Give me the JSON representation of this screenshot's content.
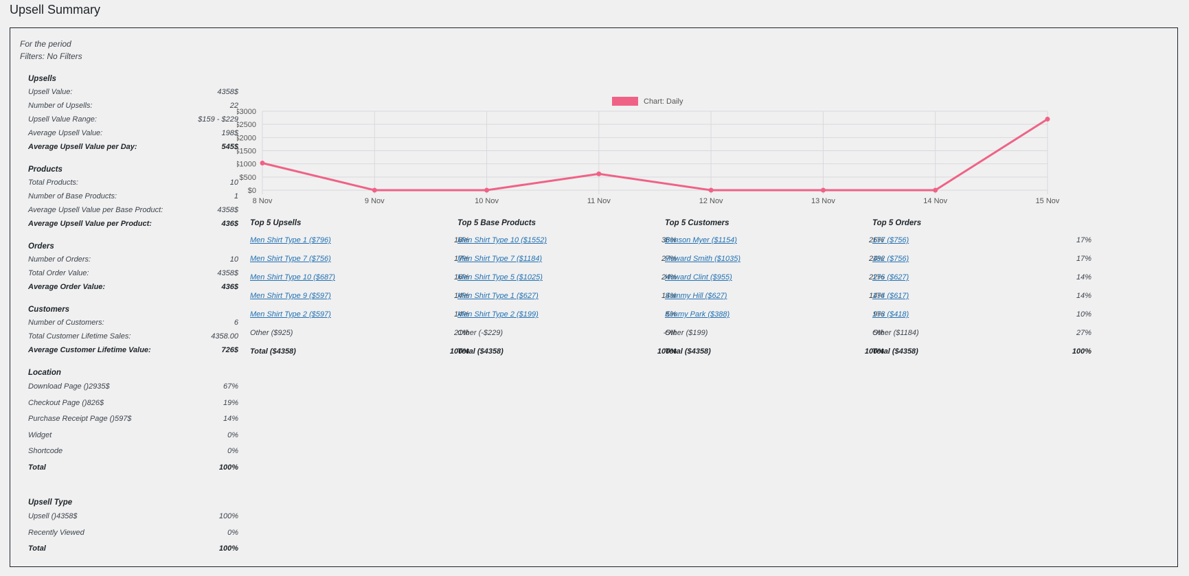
{
  "page_title": "Upsell Summary",
  "period": {
    "label": "For the period",
    "filters": "Filters: No Filters"
  },
  "colors": {
    "line": "#f06285",
    "link": "#2271b1",
    "grid": "#d9d9dc"
  },
  "sections": [
    {
      "heading": "Upsells",
      "rows": [
        {
          "label": "Upsell Value:",
          "value": "4358$"
        },
        {
          "label": "Number of Upsells:",
          "value": "22"
        },
        {
          "label": "Upsell Value Range:",
          "value": "$159 - $229"
        },
        {
          "label": "Average Upsell Value:",
          "value": "198$"
        },
        {
          "label": "Average Upsell Value per Day:",
          "value": "545$",
          "bold": true
        }
      ]
    },
    {
      "heading": "Products",
      "rows": [
        {
          "label": "Total Products:",
          "value": "10"
        },
        {
          "label": "Number of Base Products:",
          "value": "1"
        },
        {
          "label": "Average Upsell Value per Base Product:",
          "value": "4358$"
        },
        {
          "label": "Average Upsell Value per Product:",
          "value": "436$",
          "bold": true
        }
      ]
    },
    {
      "heading": "Orders",
      "rows": [
        {
          "label": "Number of Orders:",
          "value": "10"
        },
        {
          "label": "Total Order Value:",
          "value": "4358$"
        },
        {
          "label": "Average Order Value:",
          "value": "436$",
          "bold": true
        }
      ]
    },
    {
      "heading": "Customers",
      "rows": [
        {
          "label": "Number of Customers:",
          "value": "6"
        },
        {
          "label": "Total Customer Lifetime Sales:",
          "value": "4358.00"
        },
        {
          "label": "Average Customer Lifetime Value:",
          "value": "726$",
          "bold": true
        }
      ]
    }
  ],
  "location": {
    "heading": "Location",
    "rows": [
      {
        "label": "Download Page ()2935$",
        "value": "67%"
      },
      {
        "label": "Checkout Page ()826$",
        "value": "19%"
      },
      {
        "label": "Purchase Receipt Page ()597$",
        "value": "14%"
      },
      {
        "label": "Widget",
        "value": "0%"
      },
      {
        "label": "Shortcode",
        "value": "0%"
      },
      {
        "label": "Total",
        "value": "100%",
        "bold": true
      }
    ]
  },
  "upsell_type": {
    "heading": "Upsell Type",
    "rows": [
      {
        "label": "Upsell ()4358$",
        "value": "100%"
      },
      {
        "label": "Recently Viewed",
        "value": "0%"
      },
      {
        "label": "Total",
        "value": "100%",
        "bold": true
      }
    ]
  },
  "chart_data": {
    "type": "line",
    "legend": "Chart: Daily",
    "x": [
      "8 Nov",
      "9 Nov",
      "10 Nov",
      "11 Nov",
      "12 Nov",
      "13 Nov",
      "14 Nov",
      "15 Nov"
    ],
    "series": [
      {
        "name": "Chart: Daily",
        "values": [
          1030,
          0,
          0,
          620,
          0,
          0,
          0,
          2700
        ]
      }
    ],
    "yticks": [
      "$0",
      "$500",
      "$1000",
      "$1500",
      "$2000",
      "$2500",
      "$3000"
    ],
    "ylim": [
      0,
      3000
    ],
    "grid": true,
    "legend_position": "top-center"
  },
  "tables": [
    {
      "title": "Top 5 Upsells",
      "rows": [
        {
          "label": "Men Shirt Type 1 ($796)",
          "pct": "18%",
          "link": true
        },
        {
          "label": "Men Shirt Type 7 ($756)",
          "pct": "17%",
          "link": true
        },
        {
          "label": "Men Shirt Type 10 ($687)",
          "pct": "16%",
          "link": true
        },
        {
          "label": "Men Shirt Type 9 ($597)",
          "pct": "14%",
          "link": true
        },
        {
          "label": "Men Shirt Type 2 ($597)",
          "pct": "14%",
          "link": true
        },
        {
          "label": "Other  ($925)",
          "pct": "21%"
        },
        {
          "label": "Total  ($4358)",
          "pct": "100%",
          "bold": true
        }
      ]
    },
    {
      "title": "Top 5 Base Products",
      "rows": [
        {
          "label": "Men Shirt Type 10 ($1552)",
          "pct": "36%",
          "link": true
        },
        {
          "label": "Men Shirt Type 7 ($1184)",
          "pct": "27%",
          "link": true
        },
        {
          "label": "Men Shirt Type 5 ($1025)",
          "pct": "24%",
          "link": true
        },
        {
          "label": "Men Shirt Type 1 ($627)",
          "pct": "14%",
          "link": true
        },
        {
          "label": "Men Shirt Type 2 ($199)",
          "pct": "5%",
          "link": true
        },
        {
          "label": "Other  (-$229)",
          "pct": "-5%"
        },
        {
          "label": "Total  ($4358)",
          "pct": "100%",
          "bold": true
        }
      ]
    },
    {
      "title": "Top 5 Customers",
      "rows": [
        {
          "label": "Benson Myer ($1154)",
          "pct": "26%",
          "link": true
        },
        {
          "label": "Howard Smith ($1035)",
          "pct": "24%",
          "link": true
        },
        {
          "label": "Howard Clint ($955)",
          "pct": "22%",
          "link": true
        },
        {
          "label": "Sammy Hill ($627)",
          "pct": "14%",
          "link": true
        },
        {
          "label": "Kimmy Park ($388)",
          "pct": "9%",
          "link": true
        },
        {
          "label": "Other  ($199)",
          "pct": "5%"
        },
        {
          "label": "Total  ($4358)",
          "pct": "100%",
          "bold": true
        }
      ]
    },
    {
      "title": "Top 5 Orders",
      "rows": [
        {
          "label": "177 ($756)",
          "pct": "17%",
          "link": true
        },
        {
          "label": "182 ($756)",
          "pct": "17%",
          "link": true
        },
        {
          "label": "176 ($627)",
          "pct": "14%",
          "link": true
        },
        {
          "label": "174 ($617)",
          "pct": "14%",
          "link": true
        },
        {
          "label": "173 ($418)",
          "pct": "10%",
          "link": true
        },
        {
          "label": "Other  ($1184)",
          "pct": "27%"
        },
        {
          "label": "Total  ($4358)",
          "pct": "100%",
          "bold": true
        }
      ]
    }
  ]
}
